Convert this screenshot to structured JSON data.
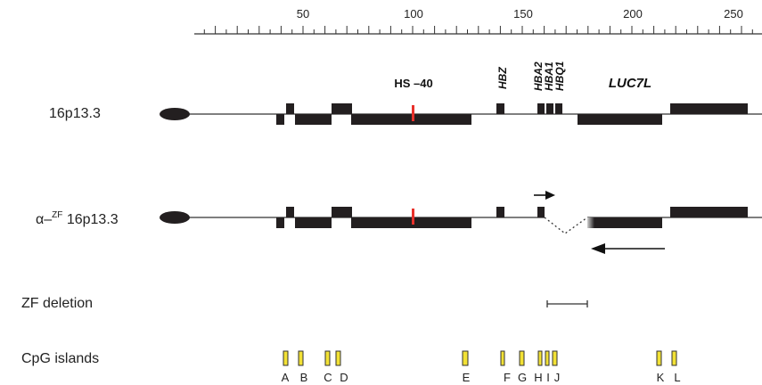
{
  "ruler": {
    "min": 0,
    "max": 260,
    "minor_step": 5,
    "major_step": 10,
    "labels": [
      "50",
      "100",
      "150",
      "200",
      "250"
    ]
  },
  "rows": {
    "normal_label": "16p13.3",
    "mutant_label_prefix": "α–",
    "mutant_label_sup": "ZF",
    "mutant_label_suffix": " 16p13.3",
    "deletion_label": "ZF deletion",
    "cpg_label": "CpG islands"
  },
  "annotations": {
    "hs40": "HS –40",
    "hbz": "HBZ",
    "hba2": "HBA2",
    "hba1": "HBA1",
    "hbq1": "HBQ1",
    "luc7l": "LUC7L"
  },
  "cpg_islands": [
    "A",
    "B",
    "C",
    "D",
    "E",
    "F",
    "G",
    "H",
    "I",
    "J",
    "K",
    "L"
  ],
  "colors": {
    "line": "#333333",
    "block": "#231f20",
    "marker": "#e8312b",
    "cpg_fill": "#f2e135",
    "cpg_stroke": "#333333",
    "fade": "#9a9a9a"
  }
}
